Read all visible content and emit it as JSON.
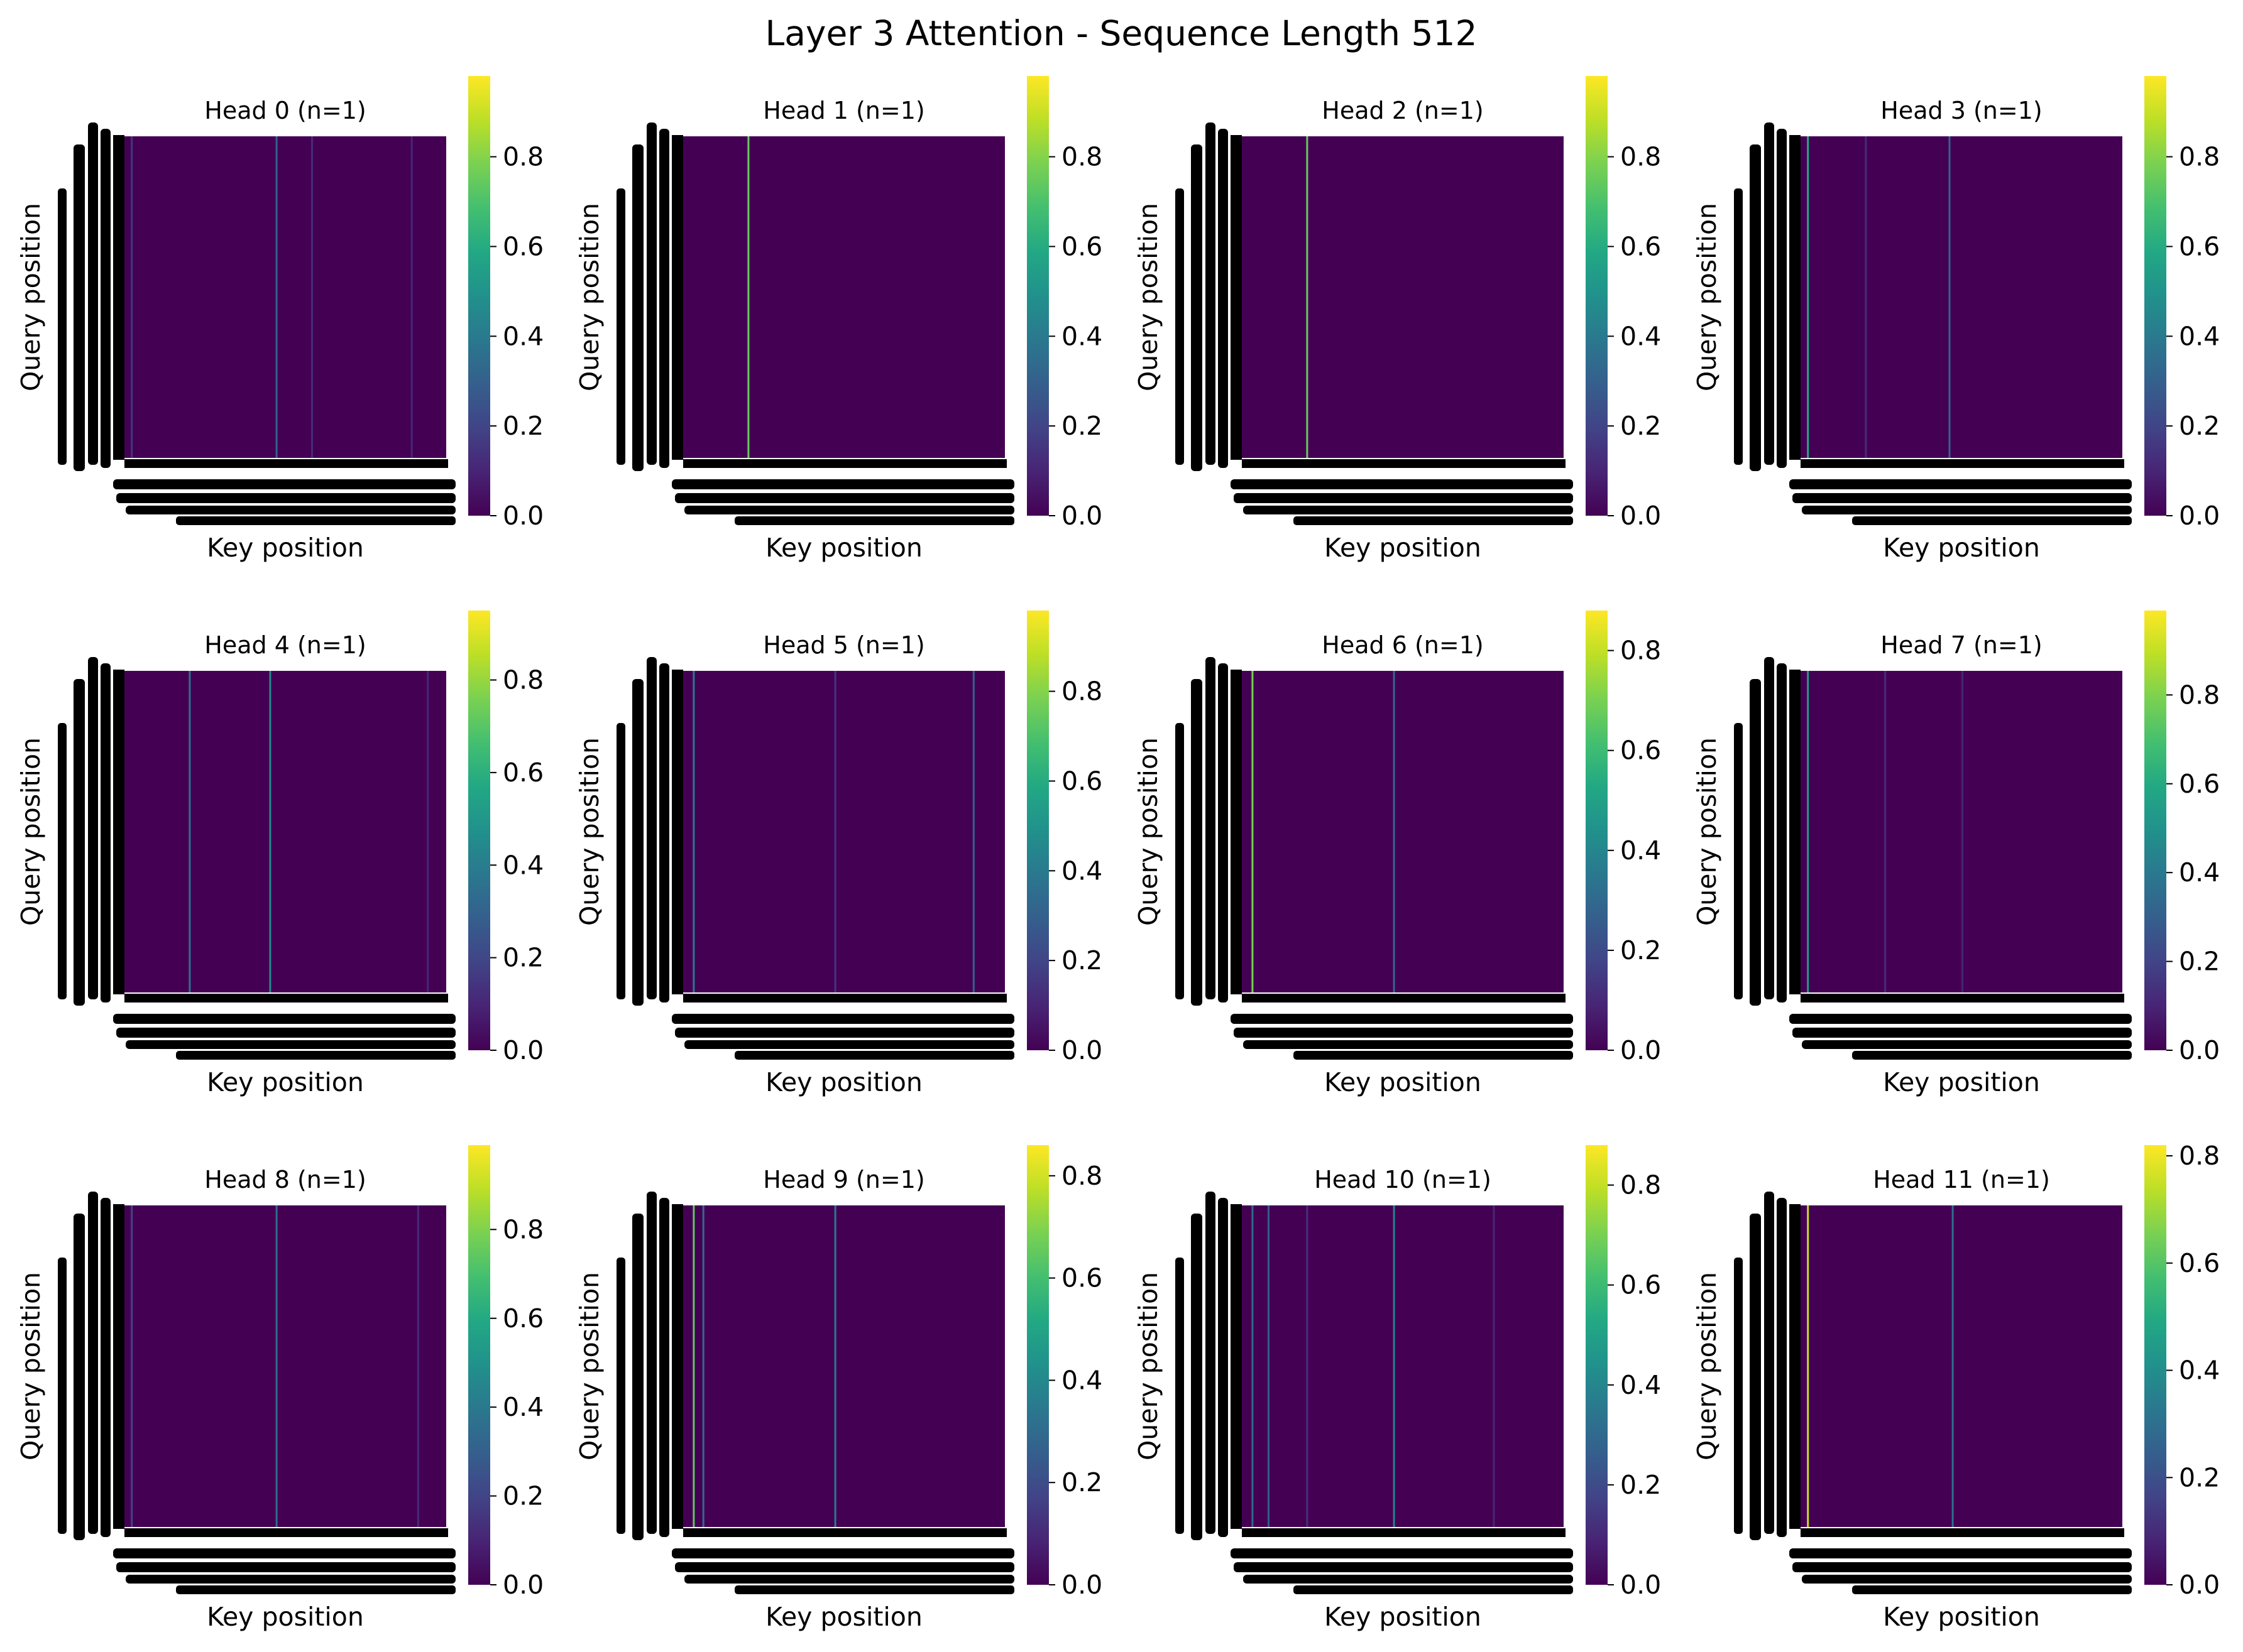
{
  "chart_data": {
    "type": "heatmap",
    "title": "Layer 3 Attention - Sequence Length 512",
    "xlabel": "Key position",
    "ylabel": "Query position",
    "colormap": "viridis",
    "background_color": "#440154",
    "grid": false,
    "tick_label_color": "#000000",
    "panels": [
      {
        "title": "Head 0 (n=1)",
        "vmin": 0.0,
        "vmax": 0.98,
        "colorbar_ticks": [
          "0.0",
          "0.2",
          "0.4",
          "0.6",
          "0.8"
        ],
        "stripes": [
          {
            "key_fraction": 0.02,
            "intensity": 0.15
          },
          {
            "key_fraction": 0.47,
            "intensity": 0.3
          },
          {
            "key_fraction": 0.58,
            "intensity": 0.12
          },
          {
            "key_fraction": 0.89,
            "intensity": 0.1
          }
        ]
      },
      {
        "title": "Head 1 (n=1)",
        "vmin": 0.0,
        "vmax": 0.98,
        "colorbar_ticks": [
          "0.0",
          "0.2",
          "0.4",
          "0.6",
          "0.8"
        ],
        "stripes": [
          {
            "key_fraction": 0.2,
            "intensity": 0.75
          }
        ]
      },
      {
        "title": "Head 2 (n=1)",
        "vmin": 0.0,
        "vmax": 0.98,
        "colorbar_ticks": [
          "0.0",
          "0.2",
          "0.4",
          "0.6",
          "0.8"
        ],
        "stripes": [
          {
            "key_fraction": 0.2,
            "intensity": 0.75
          }
        ]
      },
      {
        "title": "Head 3 (n=1)",
        "vmin": 0.0,
        "vmax": 0.98,
        "colorbar_ticks": [
          "0.0",
          "0.2",
          "0.4",
          "0.6",
          "0.8"
        ],
        "stripes": [
          {
            "key_fraction": 0.02,
            "intensity": 0.6
          },
          {
            "key_fraction": 0.2,
            "intensity": 0.12
          },
          {
            "key_fraction": 0.46,
            "intensity": 0.3
          }
        ]
      },
      {
        "title": "Head 4 (n=1)",
        "vmin": 0.0,
        "vmax": 0.95,
        "colorbar_ticks": [
          "0.0",
          "0.2",
          "0.4",
          "0.6",
          "0.8"
        ],
        "stripes": [
          {
            "key_fraction": 0.2,
            "intensity": 0.35
          },
          {
            "key_fraction": 0.45,
            "intensity": 0.45
          },
          {
            "key_fraction": 0.94,
            "intensity": 0.1
          }
        ]
      },
      {
        "title": "Head 5 (n=1)",
        "vmin": 0.0,
        "vmax": 0.98,
        "colorbar_ticks": [
          "0.0",
          "0.2",
          "0.4",
          "0.6",
          "0.8"
        ],
        "stripes": [
          {
            "key_fraction": 0.03,
            "intensity": 0.4
          },
          {
            "key_fraction": 0.47,
            "intensity": 0.15
          },
          {
            "key_fraction": 0.9,
            "intensity": 0.3
          }
        ]
      },
      {
        "title": "Head 6 (n=1)",
        "vmin": 0.0,
        "vmax": 0.88,
        "colorbar_ticks": [
          "0.0",
          "0.2",
          "0.4",
          "0.6",
          "0.8"
        ],
        "stripes": [
          {
            "key_fraction": 0.03,
            "intensity": 0.7
          },
          {
            "key_fraction": 0.47,
            "intensity": 0.3
          }
        ]
      },
      {
        "title": "Head 7 (n=1)",
        "vmin": 0.0,
        "vmax": 0.99,
        "colorbar_ticks": [
          "0.0",
          "0.2",
          "0.4",
          "0.6",
          "0.8"
        ],
        "stripes": [
          {
            "key_fraction": 0.02,
            "intensity": 0.55
          },
          {
            "key_fraction": 0.26,
            "intensity": 0.12
          },
          {
            "key_fraction": 0.5,
            "intensity": 0.1
          }
        ]
      },
      {
        "title": "Head 8 (n=1)",
        "vmin": 0.0,
        "vmax": 0.99,
        "colorbar_ticks": [
          "0.0",
          "0.2",
          "0.4",
          "0.6",
          "0.8"
        ],
        "stripes": [
          {
            "key_fraction": 0.02,
            "intensity": 0.2
          },
          {
            "key_fraction": 0.47,
            "intensity": 0.35
          },
          {
            "key_fraction": 0.91,
            "intensity": 0.12
          }
        ]
      },
      {
        "title": "Head 9 (n=1)",
        "vmin": 0.0,
        "vmax": 0.86,
        "colorbar_ticks": [
          "0.0",
          "0.2",
          "0.4",
          "0.6",
          "0.8"
        ],
        "stripes": [
          {
            "key_fraction": 0.03,
            "intensity": 0.65
          },
          {
            "key_fraction": 0.06,
            "intensity": 0.3
          },
          {
            "key_fraction": 0.47,
            "intensity": 0.35
          }
        ]
      },
      {
        "title": "Head 10 (n=1)",
        "vmin": 0.0,
        "vmax": 0.88,
        "colorbar_ticks": [
          "0.0",
          "0.2",
          "0.4",
          "0.6",
          "0.8"
        ],
        "stripes": [
          {
            "key_fraction": 0.03,
            "intensity": 0.3
          },
          {
            "key_fraction": 0.08,
            "intensity": 0.25
          },
          {
            "key_fraction": 0.2,
            "intensity": 0.12
          },
          {
            "key_fraction": 0.47,
            "intensity": 0.4
          },
          {
            "key_fraction": 0.78,
            "intensity": 0.1
          }
        ]
      },
      {
        "title": "Head 11 (n=1)",
        "vmin": 0.0,
        "vmax": 0.82,
        "colorbar_ticks": [
          "0.0",
          "0.2",
          "0.4",
          "0.6",
          "0.8"
        ],
        "stripes": [
          {
            "key_fraction": 0.02,
            "intensity": 0.75
          },
          {
            "key_fraction": 0.47,
            "intensity": 0.3
          }
        ]
      }
    ]
  }
}
